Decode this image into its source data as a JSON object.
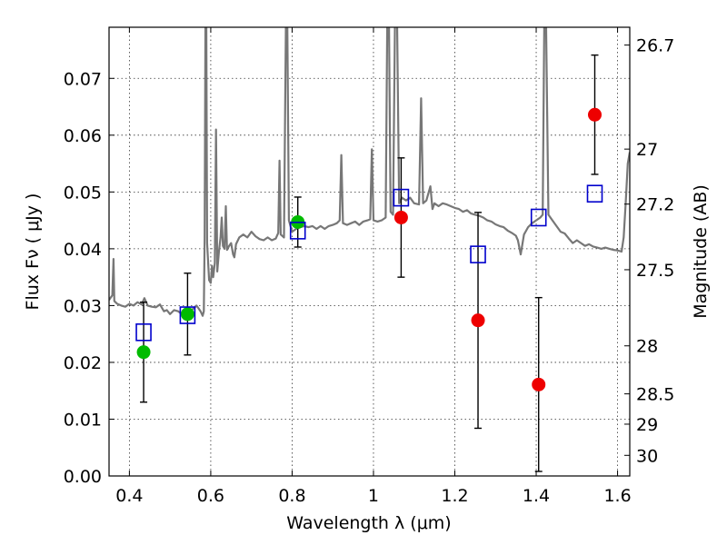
{
  "chart_data": {
    "type": "scatter",
    "xlabel": "Wavelength  λ (μm)",
    "ylabel": "Flux  Fν  ( μJy )",
    "y2label": "Magnitude (AB)",
    "xlim": [
      0.35,
      1.63
    ],
    "ylim": [
      0.0,
      0.079
    ],
    "grid": true,
    "x_ticks": [
      0.4,
      0.6,
      0.8,
      1.0,
      1.2,
      1.4,
      1.6
    ],
    "x_tick_labels": [
      "0.4",
      "0.6",
      "0.8",
      "1",
      "1.2",
      "1.4",
      "1.6"
    ],
    "y_ticks": [
      0.0,
      0.01,
      0.02,
      0.03,
      0.04,
      0.05,
      0.06,
      0.07
    ],
    "y_tick_labels": [
      "0.00",
      "0.01",
      "0.02",
      "0.03",
      "0.04",
      "0.05",
      "0.06",
      "0.07"
    ],
    "y2_ticks": [
      {
        "label": "26.7",
        "mag": 26.7
      },
      {
        "label": "27",
        "mag": 27.0
      },
      {
        "label": "27.2",
        "mag": 27.2
      },
      {
        "label": "27.5",
        "mag": 27.5
      },
      {
        "label": "28",
        "mag": 28.0
      },
      {
        "label": "28.5",
        "mag": 28.5
      },
      {
        "label": "29",
        "mag": 29.0
      },
      {
        "label": "30",
        "mag": 30.0
      }
    ],
    "colors": {
      "green": "#00bb00",
      "red": "#ee0000",
      "blue": "#0000cc",
      "spectrum": "#777777",
      "errorbar": "#000000"
    },
    "series": [
      {
        "marker": "circle",
        "color": "green",
        "points": [
          {
            "x": 0.435,
            "y": 0.0218,
            "err": 0.0088
          },
          {
            "x": 0.543,
            "y": 0.0285,
            "err": 0.0072
          },
          {
            "x": 0.814,
            "y": 0.0447,
            "err": 0.0044
          }
        ]
      },
      {
        "marker": "circle",
        "color": "red",
        "points": [
          {
            "x": 1.068,
            "y": 0.0455,
            "err": 0.0105
          },
          {
            "x": 1.257,
            "y": 0.0274,
            "err": 0.019
          },
          {
            "x": 1.406,
            "y": 0.0161,
            "err": 0.0153
          },
          {
            "x": 1.544,
            "y": 0.0636,
            "err": 0.0105
          }
        ]
      },
      {
        "marker": "open-square",
        "color": "blue",
        "points": [
          {
            "x": 0.435,
            "y": 0.0253
          },
          {
            "x": 0.543,
            "y": 0.0283
          },
          {
            "x": 0.814,
            "y": 0.0432
          },
          {
            "x": 1.068,
            "y": 0.049
          },
          {
            "x": 1.257,
            "y": 0.039
          },
          {
            "x": 1.406,
            "y": 0.0455
          },
          {
            "x": 1.544,
            "y": 0.0497
          }
        ]
      },
      {
        "marker": "line",
        "color": "spectrum",
        "points": [
          [
            0.35,
            0.031
          ],
          [
            0.358,
            0.0318
          ],
          [
            0.361,
            0.0382
          ],
          [
            0.363,
            0.0308
          ],
          [
            0.37,
            0.0303
          ],
          [
            0.38,
            0.03
          ],
          [
            0.39,
            0.0298
          ],
          [
            0.4,
            0.0303
          ],
          [
            0.41,
            0.03
          ],
          [
            0.42,
            0.0306
          ],
          [
            0.43,
            0.0302
          ],
          [
            0.437,
            0.0313
          ],
          [
            0.445,
            0.03
          ],
          [
            0.455,
            0.0298
          ],
          [
            0.465,
            0.0297
          ],
          [
            0.475,
            0.0302
          ],
          [
            0.485,
            0.029
          ],
          [
            0.492,
            0.0292
          ],
          [
            0.5,
            0.0285
          ],
          [
            0.51,
            0.0292
          ],
          [
            0.52,
            0.029
          ],
          [
            0.53,
            0.0284
          ],
          [
            0.54,
            0.0287
          ],
          [
            0.55,
            0.0291
          ],
          [
            0.56,
            0.0296
          ],
          [
            0.565,
            0.03
          ],
          [
            0.57,
            0.0295
          ],
          [
            0.575,
            0.029
          ],
          [
            0.58,
            0.0282
          ],
          [
            0.583,
            0.029
          ],
          [
            0.585,
            0.042
          ],
          [
            0.587,
            0.081
          ],
          [
            0.589,
            0.081
          ],
          [
            0.591,
            0.041
          ],
          [
            0.596,
            0.0345
          ],
          [
            0.6,
            0.034
          ],
          [
            0.603,
            0.037
          ],
          [
            0.606,
            0.035
          ],
          [
            0.61,
            0.0375
          ],
          [
            0.613,
            0.061
          ],
          [
            0.616,
            0.036
          ],
          [
            0.62,
            0.0395
          ],
          [
            0.624,
            0.042
          ],
          [
            0.627,
            0.0455
          ],
          [
            0.63,
            0.0405
          ],
          [
            0.634,
            0.04
          ],
          [
            0.637,
            0.0475
          ],
          [
            0.64,
            0.0398
          ],
          [
            0.645,
            0.0405
          ],
          [
            0.65,
            0.041
          ],
          [
            0.655,
            0.039
          ],
          [
            0.658,
            0.0385
          ],
          [
            0.662,
            0.0408
          ],
          [
            0.67,
            0.042
          ],
          [
            0.68,
            0.0425
          ],
          [
            0.69,
            0.042
          ],
          [
            0.7,
            0.043
          ],
          [
            0.71,
            0.0422
          ],
          [
            0.72,
            0.0417
          ],
          [
            0.73,
            0.0415
          ],
          [
            0.74,
            0.042
          ],
          [
            0.75,
            0.0415
          ],
          [
            0.76,
            0.0418
          ],
          [
            0.766,
            0.0428
          ],
          [
            0.769,
            0.0555
          ],
          [
            0.772,
            0.0425
          ],
          [
            0.78,
            0.042
          ],
          [
            0.785,
            0.081
          ],
          [
            0.788,
            0.081
          ],
          [
            0.792,
            0.045
          ],
          [
            0.8,
            0.043
          ],
          [
            0.81,
            0.0435
          ],
          [
            0.82,
            0.0438
          ],
          [
            0.83,
            0.044
          ],
          [
            0.84,
            0.0438
          ],
          [
            0.85,
            0.044
          ],
          [
            0.86,
            0.0435
          ],
          [
            0.87,
            0.044
          ],
          [
            0.88,
            0.0435
          ],
          [
            0.89,
            0.044
          ],
          [
            0.9,
            0.0442
          ],
          [
            0.91,
            0.0445
          ],
          [
            0.917,
            0.045
          ],
          [
            0.921,
            0.0565
          ],
          [
            0.925,
            0.0445
          ],
          [
            0.935,
            0.0442
          ],
          [
            0.945,
            0.0445
          ],
          [
            0.955,
            0.0448
          ],
          [
            0.965,
            0.0442
          ],
          [
            0.975,
            0.0448
          ],
          [
            0.985,
            0.045
          ],
          [
            0.992,
            0.0452
          ],
          [
            0.996,
            0.0575
          ],
          [
            1.0,
            0.045
          ],
          [
            1.01,
            0.0448
          ],
          [
            1.02,
            0.045
          ],
          [
            1.03,
            0.0455
          ],
          [
            1.034,
            0.081
          ],
          [
            1.038,
            0.081
          ],
          [
            1.042,
            0.0465
          ],
          [
            1.048,
            0.046
          ],
          [
            1.053,
            0.081
          ],
          [
            1.058,
            0.081
          ],
          [
            1.063,
            0.048
          ],
          [
            1.07,
            0.049
          ],
          [
            1.08,
            0.0485
          ],
          [
            1.09,
            0.049
          ],
          [
            1.1,
            0.048
          ],
          [
            1.112,
            0.0478
          ],
          [
            1.117,
            0.0665
          ],
          [
            1.122,
            0.048
          ],
          [
            1.13,
            0.0485
          ],
          [
            1.14,
            0.051
          ],
          [
            1.145,
            0.047
          ],
          [
            1.15,
            0.048
          ],
          [
            1.16,
            0.0475
          ],
          [
            1.17,
            0.048
          ],
          [
            1.18,
            0.0478
          ],
          [
            1.19,
            0.0475
          ],
          [
            1.2,
            0.0472
          ],
          [
            1.21,
            0.047
          ],
          [
            1.22,
            0.0465
          ],
          [
            1.23,
            0.0468
          ],
          [
            1.24,
            0.0462
          ],
          [
            1.25,
            0.046
          ],
          [
            1.26,
            0.0458
          ],
          [
            1.27,
            0.0455
          ],
          [
            1.28,
            0.045
          ],
          [
            1.29,
            0.0448
          ],
          [
            1.3,
            0.0443
          ],
          [
            1.31,
            0.044
          ],
          [
            1.32,
            0.0438
          ],
          [
            1.33,
            0.0432
          ],
          [
            1.34,
            0.0428
          ],
          [
            1.35,
            0.0423
          ],
          [
            1.355,
            0.0415
          ],
          [
            1.362,
            0.039
          ],
          [
            1.37,
            0.0425
          ],
          [
            1.38,
            0.0438
          ],
          [
            1.39,
            0.0445
          ],
          [
            1.4,
            0.045
          ],
          [
            1.41,
            0.0455
          ],
          [
            1.416,
            0.046
          ],
          [
            1.42,
            0.081
          ],
          [
            1.424,
            0.081
          ],
          [
            1.43,
            0.046
          ],
          [
            1.44,
            0.045
          ],
          [
            1.45,
            0.044
          ],
          [
            1.46,
            0.043
          ],
          [
            1.47,
            0.0427
          ],
          [
            1.48,
            0.0418
          ],
          [
            1.49,
            0.041
          ],
          [
            1.5,
            0.0415
          ],
          [
            1.51,
            0.041
          ],
          [
            1.52,
            0.0405
          ],
          [
            1.53,
            0.0408
          ],
          [
            1.54,
            0.0404
          ],
          [
            1.55,
            0.0402
          ],
          [
            1.56,
            0.04
          ],
          [
            1.57,
            0.0402
          ],
          [
            1.58,
            0.04
          ],
          [
            1.59,
            0.0398
          ],
          [
            1.6,
            0.0397
          ],
          [
            1.61,
            0.0395
          ],
          [
            1.615,
            0.042
          ],
          [
            1.62,
            0.048
          ],
          [
            1.625,
            0.055
          ],
          [
            1.63,
            0.057
          ]
        ]
      }
    ]
  }
}
